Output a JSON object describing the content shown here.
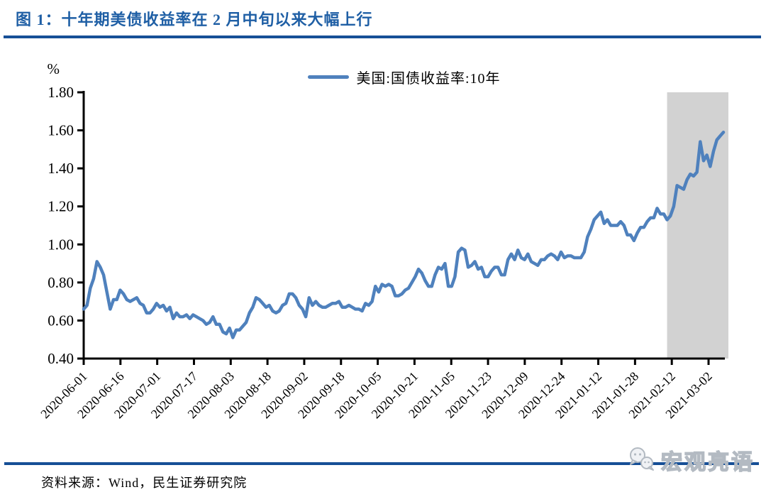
{
  "figure": {
    "title": "图 1：十年期美债收益率在 2 月中旬以来大幅上行",
    "source": "资料来源：Wind，民生证券研究院",
    "watermark": "宏观亮语"
  },
  "colors": {
    "title_blue": "#1F5FA5",
    "rule_blue": "#164F96",
    "line_blue": "#4F81BD",
    "band_gray": "#D2D2D2",
    "axis_black": "#000000",
    "watermark_gray": "#B3BAC2"
  },
  "chart_data": {
    "type": "line",
    "title": "",
    "unit_label": "%",
    "legend": [
      "美国:国债收益率:10年"
    ],
    "legend_position": "top-center",
    "grid": false,
    "ylim": [
      0.4,
      1.8
    ],
    "y_tick_step": 0.2,
    "y_ticks": [
      "1.80",
      "1.60",
      "1.40",
      "1.20",
      "1.00",
      "0.80",
      "0.60",
      "0.40"
    ],
    "x_tick_labels": [
      "2020-06-01",
      "2020-06-16",
      "2020-07-01",
      "2020-07-17",
      "2020-08-03",
      "2020-08-18",
      "2020-09-02",
      "2020-09-18",
      "2020-10-05",
      "2020-10-21",
      "2020-11-05",
      "2020-11-23",
      "2020-12-09",
      "2020-12-24",
      "2021-01-12",
      "2021-01-28",
      "2021-02-12",
      "2021-03-02"
    ],
    "points_per_tick": 11,
    "line_color": "#4F81BD",
    "highlight_band": {
      "color": "#D2D2D2",
      "start_index": 176
    },
    "values": [
      0.66,
      0.68,
      0.77,
      0.82,
      0.91,
      0.88,
      0.84,
      0.75,
      0.66,
      0.71,
      0.71,
      0.76,
      0.74,
      0.71,
      0.7,
      0.71,
      0.72,
      0.69,
      0.68,
      0.64,
      0.64,
      0.66,
      0.69,
      0.67,
      0.68,
      0.65,
      0.67,
      0.61,
      0.64,
      0.62,
      0.62,
      0.63,
      0.61,
      0.63,
      0.62,
      0.61,
      0.6,
      0.58,
      0.59,
      0.62,
      0.58,
      0.58,
      0.54,
      0.53,
      0.56,
      0.51,
      0.55,
      0.55,
      0.57,
      0.59,
      0.64,
      0.67,
      0.72,
      0.71,
      0.69,
      0.67,
      0.68,
      0.65,
      0.64,
      0.65,
      0.68,
      0.69,
      0.74,
      0.74,
      0.72,
      0.68,
      0.66,
      0.62,
      0.72,
      0.68,
      0.7,
      0.68,
      0.67,
      0.67,
      0.68,
      0.69,
      0.69,
      0.7,
      0.67,
      0.67,
      0.68,
      0.67,
      0.66,
      0.66,
      0.65,
      0.69,
      0.68,
      0.7,
      0.78,
      0.75,
      0.79,
      0.78,
      0.79,
      0.78,
      0.73,
      0.73,
      0.74,
      0.76,
      0.77,
      0.8,
      0.83,
      0.87,
      0.85,
      0.81,
      0.78,
      0.78,
      0.84,
      0.88,
      0.87,
      0.9,
      0.78,
      0.78,
      0.83,
      0.96,
      0.98,
      0.97,
      0.88,
      0.89,
      0.91,
      0.87,
      0.88,
      0.83,
      0.83,
      0.86,
      0.88,
      0.88,
      0.84,
      0.84,
      0.92,
      0.95,
      0.92,
      0.97,
      0.93,
      0.92,
      0.95,
      0.91,
      0.9,
      0.89,
      0.92,
      0.92,
      0.94,
      0.95,
      0.94,
      0.92,
      0.96,
      0.93,
      0.94,
      0.94,
      0.93,
      0.93,
      0.93,
      0.96,
      1.04,
      1.08,
      1.13,
      1.15,
      1.17,
      1.11,
      1.13,
      1.1,
      1.1,
      1.1,
      1.12,
      1.1,
      1.05,
      1.05,
      1.02,
      1.06,
      1.09,
      1.09,
      1.12,
      1.14,
      1.14,
      1.19,
      1.16,
      1.16,
      1.13,
      1.15,
      1.2,
      1.31,
      1.3,
      1.29,
      1.34,
      1.37,
      1.36,
      1.38,
      1.54,
      1.44,
      1.47,
      1.41,
      1.49,
      1.55,
      1.57,
      1.59
    ]
  }
}
